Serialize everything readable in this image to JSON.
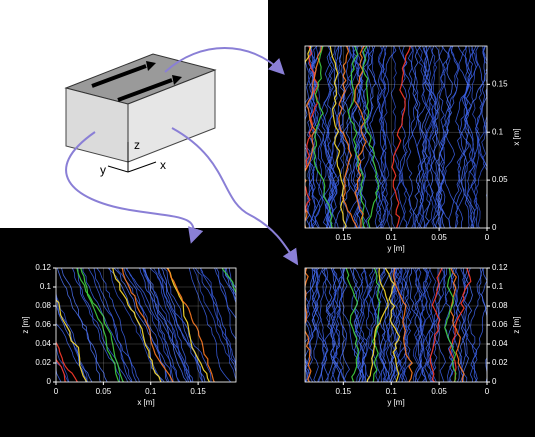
{
  "diagram": {
    "labels": {
      "z": "z",
      "y": "y",
      "x": "x"
    }
  },
  "panels": [
    {
      "xlabel": "y [m]",
      "ylabel": "x [m]",
      "xlim": [
        0.19,
        0
      ],
      "ylim": [
        0,
        0.19
      ],
      "xticks": [
        0.15,
        0.1,
        0.05,
        0
      ],
      "yticks": [
        0,
        0.05,
        0.1,
        0.15
      ],
      "grid": true
    },
    {
      "xlabel": "x [m]",
      "ylabel": "z [m]",
      "xlim": [
        0,
        0.19
      ],
      "ylim": [
        0,
        0.12
      ],
      "xticks": [
        0,
        0.05,
        0.1,
        0.15
      ],
      "yticks": [
        0,
        0.02,
        0.04,
        0.06,
        0.08,
        0.1,
        0.12
      ],
      "grid": true
    },
    {
      "xlabel": "y [m]",
      "ylabel": "z [m]",
      "xlim": [
        0.19,
        0
      ],
      "ylim": [
        0,
        0.12
      ],
      "xticks": [
        0.15,
        0.1,
        0.05,
        0
      ],
      "yticks": [
        0,
        0.02,
        0.04,
        0.06,
        0.08,
        0.1,
        0.12
      ],
      "grid": true
    }
  ]
}
